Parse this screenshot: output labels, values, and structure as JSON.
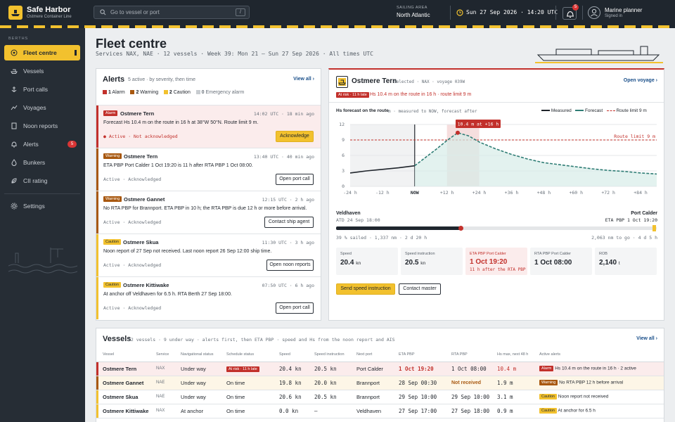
{
  "topbar": {
    "brand": "Safe Harbor",
    "brand_sub": "Ostmere Container Line",
    "search_placeholder": "Go to vessel or port",
    "search_key": "/",
    "area_label": "SAILING AREA",
    "area_value": "North Atlantic",
    "clock": "Sun 27 Sep 2026 · 14:20 UTC",
    "bell_count": "5",
    "user_name": "Marine planner",
    "user_status": "Signed in"
  },
  "sidebar": {
    "section": "BERTHS",
    "items": [
      {
        "label": "Fleet centre",
        "icon": "fleet-icon"
      },
      {
        "label": "Vessels",
        "icon": "ship-icon"
      },
      {
        "label": "Port calls",
        "icon": "anchor-icon"
      },
      {
        "label": "Voyages",
        "icon": "route-icon"
      },
      {
        "label": "Noon reports",
        "icon": "document-icon"
      },
      {
        "label": "Alerts",
        "icon": "bell-icon",
        "badge": "5"
      },
      {
        "label": "Bunkers",
        "icon": "fuel-drop-icon"
      },
      {
        "label": "CII rating",
        "icon": "leaf-icon"
      },
      {
        "label": "Settings",
        "icon": "gear-icon"
      }
    ]
  },
  "page": {
    "title": "Fleet centre",
    "subtitle": "Services NAX, NAE  ·  12 vessels  ·  Week 39: Mon 21 – Sun 27 Sep 2026  ·  All times UTC"
  },
  "alerts": {
    "title": "Alerts",
    "meta": "5 active · by severity, then time",
    "view_all": "View all ›",
    "legend": [
      {
        "count": "1",
        "label": "Alarm",
        "color": "#c2302b"
      },
      {
        "count": "2",
        "label": "Warning",
        "color": "#a8580f"
      },
      {
        "count": "2",
        "label": "Caution",
        "color": "#f2c12e"
      },
      {
        "count": "0",
        "label": "Emergency alarm",
        "color": "#c8ccd0"
      }
    ],
    "items": [
      {
        "tag": "Alarm",
        "vessel": "Ostmere Tern",
        "time": "14:02 UTC · 18 min ago",
        "text": "Forecast Hs 10.4 m on the route in 16 h at 38°W 50°N. Route limit 9 m.",
        "state": "Active · Not acknowledged",
        "button": "Acknowledge",
        "level": "alarm"
      },
      {
        "tag": "Warning",
        "vessel": "Ostmere Tern",
        "time": "13:40 UTC · 40 min ago",
        "text": "ETA PBP Port Calder 1 Oct 19:20 is 11 h after RTA PBP 1 Oct 08:00.",
        "state": "Active · Acknowledged",
        "button": "Open port call",
        "level": "warn"
      },
      {
        "tag": "Warning",
        "vessel": "Ostmere Gannet",
        "time": "12:15 UTC · 2 h ago",
        "text": "No RTA PBP for Brannport. ETA PBP in 10 h; the RTA PBP is due 12 h or more before arrival.",
        "state": "Active · Acknowledged",
        "button": "Contact ship agent",
        "level": "warn"
      },
      {
        "tag": "Caution",
        "vessel": "Ostmere Skua",
        "time": "11:30 UTC · 3 h ago",
        "text": "Noon report of 27 Sep not received. Last noon report 26 Sep 12:00 ship time.",
        "state": "Active · Acknowledged",
        "button": "Open noon reports",
        "level": "caut"
      },
      {
        "tag": "Caution",
        "vessel": "Ostmere Kittiwake",
        "time": "07:50 UTC · 6 h ago",
        "text": "At anchor off Veldhaven for 6.5 h. RTA Berth 27 Sep 18:00.",
        "state": "Active · Acknowledged",
        "button": "Open port call",
        "level": "caut"
      }
    ]
  },
  "detail": {
    "vessel": "Ostmere Tern",
    "selected": "Selected · NAX · voyage 039W",
    "open": "Open voyage ›",
    "risk_tag": "At risk · 11 h late",
    "risk_text": "Hs 10.4 m on the route in 16 h · route limit 9 m",
    "chart_title": "Hs forecast on the route",
    "chart_sub": "m · measured to NOW, forecast after",
    "legend": [
      "Measured",
      "Forecast",
      "Route limit 9 m"
    ],
    "callout": "10.4 m at +16 h",
    "limit_label": "Route limit 9 m",
    "now_label": "NOW",
    "from_port": "Veldhaven",
    "to_port": "Port Calder",
    "atd": "ATD 24 Sep 18:00",
    "eta": "ETA PBP 1 Oct 19:20",
    "progress_pct": 39,
    "progress_left": "39 % sailed · 1,337 nm · 2 d 20 h",
    "progress_right": "2,063 nm to go · 4 d 5 h",
    "metrics": [
      {
        "label": "Speed",
        "value": "20.4",
        "unit": "kn"
      },
      {
        "label": "Speed instruction",
        "value": "20.5",
        "unit": "kn"
      },
      {
        "label": "ETA PBP Port Calder",
        "value": "1 Oct 19:20",
        "extra": "11 h after the RTA PBP"
      },
      {
        "label": "RTA PBP Port Calder",
        "value": "1 Oct 08:00"
      },
      {
        "label": "ROB",
        "value": "2,140",
        "unit": "t"
      }
    ],
    "btn_speed": "Send speed instruction",
    "btn_master": "Contact master"
  },
  "chart_data": {
    "type": "line",
    "title": "Hs forecast on the route",
    "ylabel": "m",
    "x_ticks": [
      "-24 h",
      "-12 h",
      "NOW",
      "+12 h",
      "+24 h",
      "+36 h",
      "+48 h",
      "+60 h",
      "+72 h",
      "+84 h"
    ],
    "y_ticks": [
      0,
      3,
      6,
      9,
      12
    ],
    "ylim": [
      0,
      12
    ],
    "xlim": [
      -24,
      90
    ],
    "limit": 9,
    "series": [
      {
        "name": "Measured",
        "x": [
          -24,
          -18,
          -12,
          -6,
          0
        ],
        "y": [
          2.6,
          3.0,
          3.3,
          3.6,
          4.0
        ]
      },
      {
        "name": "Forecast",
        "x": [
          0,
          4,
          8,
          12,
          16,
          20,
          24,
          30,
          36,
          42,
          48,
          54,
          60,
          66,
          72,
          78,
          84,
          90
        ],
        "y": [
          4.0,
          5.6,
          7.2,
          8.9,
          10.4,
          9.8,
          8.6,
          7.3,
          6.2,
          5.3,
          4.6,
          4.2,
          3.8,
          3.4,
          3.1,
          2.9,
          2.6,
          2.4
        ]
      }
    ]
  },
  "vessels": {
    "title": "Vessels",
    "meta": "12 vessels · 9 under way · alerts first, then ETA PBP · speed and Hs from the noon report and AIS",
    "view_all": "View all ›",
    "columns": [
      "Vessel",
      "Service",
      "Navigational status",
      "Schedule status",
      "Speed",
      "Speed instruction",
      "Next port",
      "ETA PBP",
      "RTA PBP",
      "Hs max, next 48 h",
      "Active alerts"
    ],
    "rows": [
      {
        "name": "Ostmere Tern",
        "service": "NAX",
        "nav": "Under way",
        "sched": "At risk · 11 h late",
        "speed": "20.4 kn",
        "instr": "20.5 kn",
        "port": "Port Calder",
        "eta": "1 Oct 19:20",
        "rta": "1 Oct 08:00",
        "hs": "10.4 m",
        "tag": "Alarm",
        "alert": "Hs 10.4 m on the route in 16 h · 2 active",
        "level": "alarm"
      },
      {
        "name": "Ostmere Gannet",
        "service": "NAE",
        "nav": "Under way",
        "sched": "On time",
        "speed": "19.8 kn",
        "instr": "20.0 kn",
        "port": "Brannport",
        "eta": "28 Sep 00:30",
        "rta": "Not received",
        "hs": "1.9 m",
        "tag": "Warning",
        "alert": "No RTA PBP 12 h before arrival",
        "level": "warn"
      },
      {
        "name": "Ostmere Skua",
        "service": "NAE",
        "nav": "Under way",
        "sched": "On time",
        "speed": "20.6 kn",
        "instr": "20.5 kn",
        "port": "Brannport",
        "eta": "29 Sep 10:00",
        "rta": "29 Sep 10:00",
        "hs": "3.1 m",
        "tag": "Caution",
        "alert": "Noon report not received",
        "level": "caut"
      },
      {
        "name": "Ostmere Kittiwake",
        "service": "NAX",
        "nav": "At anchor",
        "sched": "On time",
        "speed": "0.0 kn",
        "instr": "–",
        "port": "Veldhaven",
        "eta": "27 Sep 17:00",
        "rta": "27 Sep 18:00",
        "hs": "0.9 m",
        "tag": "Caution",
        "alert": "At anchor for 6.5 h",
        "level": "caut"
      }
    ]
  }
}
